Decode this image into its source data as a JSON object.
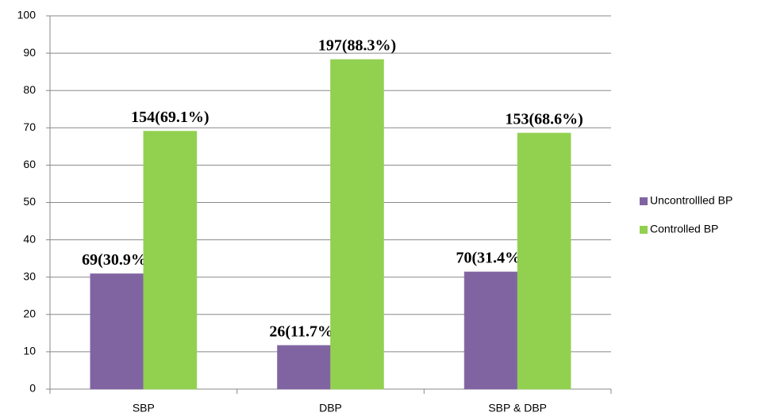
{
  "chart_data": {
    "type": "bar",
    "categories": [
      "SBP",
      "DBP",
      "SBP & DBP"
    ],
    "series": [
      {
        "name": "Uncontrollled BP",
        "color": "#8064a2",
        "values": [
          30.9,
          11.7,
          31.4
        ],
        "value_labels": [
          "69(30.9%)",
          "26(11.7%)",
          "70(31.4%)"
        ]
      },
      {
        "name": "Controlled BP",
        "color": "#92d050",
        "values": [
          69.1,
          88.3,
          68.6
        ],
        "value_labels": [
          "154(69.1%)",
          "197(88.3%)",
          "153(68.6%)"
        ]
      }
    ],
    "ylim": [
      0,
      100
    ],
    "yticks": [
      0,
      10,
      20,
      30,
      40,
      50,
      60,
      70,
      80,
      90,
      100
    ],
    "grid": true,
    "legend": "right"
  }
}
